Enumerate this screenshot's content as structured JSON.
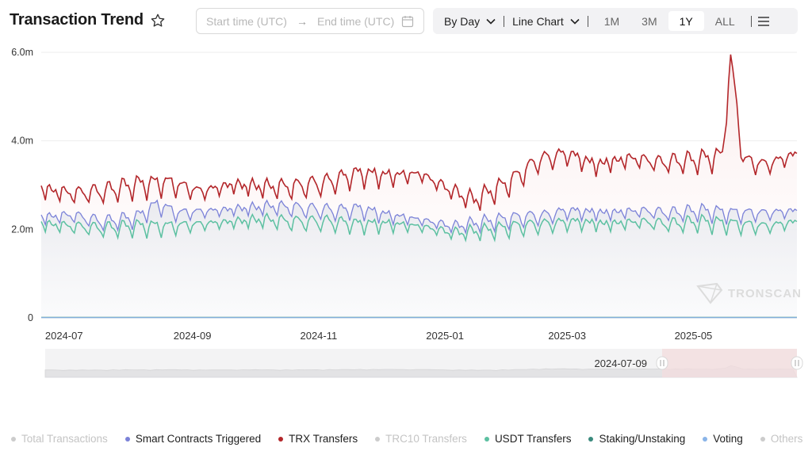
{
  "header": {
    "title": "Transaction Trend",
    "star_icon": "star-outline-icon"
  },
  "date_range": {
    "start_placeholder": "Start time (UTC)",
    "arrow": "→",
    "end_placeholder": "End time (UTC)",
    "calendar_icon": "calendar-icon"
  },
  "toolbar": {
    "granularity": "By Day",
    "chart_type": "Line Chart",
    "ranges": [
      "1M",
      "3M",
      "1Y",
      "ALL"
    ],
    "active_range": "1Y",
    "menu_icon": "hamburger-menu-icon"
  },
  "watermark": "TRONSCAN",
  "slider": {
    "handle_date": "2024-07-09"
  },
  "colors": {
    "trx": "#b3262a",
    "smart": "#7b82d8",
    "usdt": "#5cc0a1",
    "staking": "#3a8a7d",
    "voting": "#8ab4e8",
    "off": "#cccccc",
    "grid": "#eeeeee"
  },
  "chart_data": {
    "type": "line",
    "title": "Transaction Trend",
    "x_range": [
      "2024-06-20",
      "2025-06-20"
    ],
    "y_range": [
      0,
      6000000
    ],
    "y_ticks": [
      {
        "value": 0,
        "label": "0"
      },
      {
        "value": 2000000,
        "label": "2.0m"
      },
      {
        "value": 4000000,
        "label": "4.0m"
      },
      {
        "value": 6000000,
        "label": "6.0m"
      }
    ],
    "x_ticks": [
      {
        "date": "2024-07-01",
        "label": "2024-07"
      },
      {
        "date": "2024-09-01",
        "label": "2024-09"
      },
      {
        "date": "2024-11-01",
        "label": "2024-11"
      },
      {
        "date": "2025-01-01",
        "label": "2025-01"
      },
      {
        "date": "2025-03-01",
        "label": "2025-03"
      },
      {
        "date": "2025-05-01",
        "label": "2025-05"
      }
    ],
    "grid": true,
    "legend_position": "bottom",
    "series": [
      {
        "name": "Total Transactions",
        "visible": false,
        "points": []
      },
      {
        "name": "Smart Contracts Triggered",
        "visible": true,
        "points": [
          [
            "2024-06-20",
            2.3
          ],
          [
            "2024-07-05",
            2.35
          ],
          [
            "2024-07-20",
            2.2
          ],
          [
            "2024-08-05",
            2.3
          ],
          [
            "2024-08-15",
            2.6
          ],
          [
            "2024-08-25",
            2.4
          ],
          [
            "2024-09-10",
            2.45
          ],
          [
            "2024-09-25",
            2.5
          ],
          [
            "2024-10-10",
            2.55
          ],
          [
            "2024-10-25",
            2.5
          ],
          [
            "2024-11-10",
            2.45
          ],
          [
            "2024-11-20",
            2.5
          ],
          [
            "2024-12-05",
            2.35
          ],
          [
            "2024-12-20",
            2.25
          ],
          [
            "2025-01-05",
            2.1
          ],
          [
            "2025-01-20",
            2.2
          ],
          [
            "2025-02-05",
            2.3
          ],
          [
            "2025-02-20",
            2.35
          ],
          [
            "2025-03-01",
            2.45
          ],
          [
            "2025-03-20",
            2.4
          ],
          [
            "2025-04-05",
            2.45
          ],
          [
            "2025-04-20",
            2.4
          ],
          [
            "2025-05-05",
            2.45
          ],
          [
            "2025-05-20",
            2.4
          ],
          [
            "2025-06-05",
            2.4
          ],
          [
            "2025-06-20",
            2.45
          ]
        ]
      },
      {
        "name": "TRX Transfers",
        "visible": true,
        "points": [
          [
            "2024-06-20",
            2.95
          ],
          [
            "2024-07-05",
            2.85
          ],
          [
            "2024-07-20",
            2.9
          ],
          [
            "2024-08-05",
            3.05
          ],
          [
            "2024-08-20",
            3.1
          ],
          [
            "2024-09-05",
            2.9
          ],
          [
            "2024-09-20",
            3.05
          ],
          [
            "2024-10-05",
            3.0
          ],
          [
            "2024-10-20",
            3.0
          ],
          [
            "2024-11-05",
            3.1
          ],
          [
            "2024-11-20",
            3.3
          ],
          [
            "2024-12-05",
            3.25
          ],
          [
            "2024-12-20",
            3.3
          ],
          [
            "2025-01-05",
            2.9
          ],
          [
            "2025-01-15",
            2.7
          ],
          [
            "2025-02-01",
            3.1
          ],
          [
            "2025-02-15",
            3.6
          ],
          [
            "2025-03-01",
            3.75
          ],
          [
            "2025-03-15",
            3.5
          ],
          [
            "2025-04-01",
            3.65
          ],
          [
            "2025-04-15",
            3.55
          ],
          [
            "2025-05-01",
            3.6
          ],
          [
            "2025-05-15",
            3.7
          ],
          [
            "2025-05-19",
            5.95
          ],
          [
            "2025-05-25",
            3.6
          ],
          [
            "2025-06-05",
            3.5
          ],
          [
            "2025-06-20",
            3.75
          ]
        ]
      },
      {
        "name": "TRC10 Transfers",
        "visible": false,
        "points": []
      },
      {
        "name": "USDT Transfers",
        "visible": true,
        "points": [
          [
            "2024-06-20",
            2.15
          ],
          [
            "2024-07-05",
            2.1
          ],
          [
            "2024-07-20",
            2.05
          ],
          [
            "2024-08-05",
            2.1
          ],
          [
            "2024-08-20",
            2.1
          ],
          [
            "2024-09-05",
            2.15
          ],
          [
            "2024-09-20",
            2.2
          ],
          [
            "2024-10-05",
            2.25
          ],
          [
            "2024-10-20",
            2.2
          ],
          [
            "2024-11-05",
            2.2
          ],
          [
            "2024-11-20",
            2.15
          ],
          [
            "2024-12-05",
            2.15
          ],
          [
            "2024-12-20",
            2.1
          ],
          [
            "2025-01-05",
            1.95
          ],
          [
            "2025-01-20",
            2.0
          ],
          [
            "2025-02-05",
            2.1
          ],
          [
            "2025-02-20",
            2.15
          ],
          [
            "2025-03-05",
            2.2
          ],
          [
            "2025-03-20",
            2.15
          ],
          [
            "2025-04-05",
            2.2
          ],
          [
            "2025-04-20",
            2.15
          ],
          [
            "2025-05-05",
            2.2
          ],
          [
            "2025-05-20",
            2.15
          ],
          [
            "2025-06-05",
            2.1
          ],
          [
            "2025-06-20",
            2.2
          ]
        ]
      },
      {
        "name": "Staking/Unstaking",
        "visible": true,
        "points": [
          [
            "2024-06-20",
            0.01
          ],
          [
            "2025-06-20",
            0.01
          ]
        ]
      },
      {
        "name": "Voting",
        "visible": true,
        "points": [
          [
            "2024-06-20",
            0.005
          ],
          [
            "2025-06-20",
            0.005
          ]
        ]
      },
      {
        "name": "Others",
        "visible": false,
        "points": []
      }
    ]
  }
}
